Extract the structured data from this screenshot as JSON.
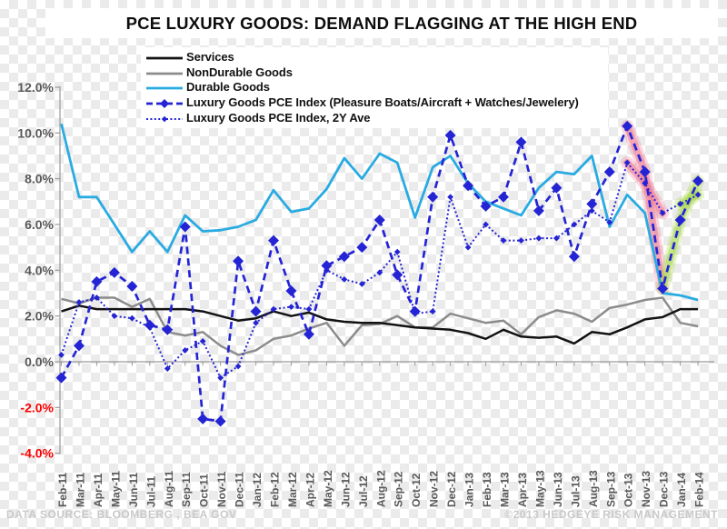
{
  "title": "PCE LUXURY GOODS: DEMAND FLAGGING AT THE HIGH END",
  "legend": {
    "items": [
      {
        "label": "Services",
        "key": "services",
        "style": "solid",
        "marker": "none"
      },
      {
        "label": "NonDurable Goods",
        "key": "nondurable",
        "style": "solid",
        "marker": "none"
      },
      {
        "label": "Durable Goods",
        "key": "durable",
        "style": "solid",
        "marker": "none"
      },
      {
        "label": "Luxury Goods PCE Index (Pleasure Boats/Aircraft + Watches/Jewelery)",
        "key": "luxury",
        "style": "dashed",
        "marker": "diamond"
      },
      {
        "label": "Luxury Goods PCE Index, 2Y Ave",
        "key": "luxury_2y",
        "style": "dotted",
        "marker": "diamond-small"
      }
    ]
  },
  "footer": {
    "left": "DATA SOURCE: BLOOMBERG , BEA GOV",
    "right": "©2013 HEDGEYE  RISK MANAGEMENT"
  },
  "colors": {
    "services": "#121212",
    "nondurable": "#8c8c8c",
    "durable": "#29abe2",
    "luxury": "#2424d4",
    "luxury_2y": "#2424d4",
    "axis_label": "#595959",
    "axis_label_negative": "#fe0000",
    "axis_line": "#9a9a9a",
    "highlight_pink": "#f2728f",
    "highlight_green": "#a6d944"
  },
  "chart_data": {
    "type": "line",
    "title": "PCE LUXURY GOODS: DEMAND FLAGGING AT THE HIGH END",
    "xlabel": "",
    "ylabel": "",
    "ylim": [
      -4,
      12
    ],
    "grid": false,
    "legend_position": "top",
    "y_ticks": [
      {
        "value": 12,
        "label": "12.0%"
      },
      {
        "value": 10,
        "label": "10.0%"
      },
      {
        "value": 8,
        "label": "8.0%"
      },
      {
        "value": 6,
        "label": "6.0%"
      },
      {
        "value": 4,
        "label": "4.0%"
      },
      {
        "value": 2,
        "label": "2.0%"
      },
      {
        "value": 0,
        "label": "0.0%"
      },
      {
        "value": -2,
        "label": "-2.0%"
      },
      {
        "value": -4,
        "label": "-4.0%"
      }
    ],
    "categories": [
      "Feb-11",
      "Mar-11",
      "Apr-11",
      "May-11",
      "Jun-11",
      "Jul-11",
      "Aug-11",
      "Sep-11",
      "Oct-11",
      "Nov-11",
      "Dec-11",
      "Jan-12",
      "Feb-12",
      "Mar-12",
      "Apr-12",
      "May-12",
      "Jun-12",
      "Jul-12",
      "Aug-12",
      "Sep-12",
      "Oct-12",
      "Nov-12",
      "Dec-12",
      "Jan-13",
      "Feb-13",
      "Mar-13",
      "Apr-13",
      "May-13",
      "Jun-13",
      "Jul-13",
      "Aug-13",
      "Sep-13",
      "Oct-13",
      "Nov-13",
      "Dec-13",
      "Jan-14",
      "Feb-14"
    ],
    "series": [
      {
        "name": "Services",
        "key": "services",
        "style": "solid",
        "marker": "none",
        "values": [
          2.2,
          2.45,
          2.3,
          2.3,
          2.3,
          2.3,
          2.3,
          2.3,
          2.2,
          2.0,
          1.8,
          1.9,
          2.2,
          2.0,
          2.15,
          1.85,
          1.75,
          1.7,
          1.7,
          1.6,
          1.5,
          1.45,
          1.4,
          1.25,
          1.0,
          1.4,
          1.1,
          1.05,
          1.1,
          0.8,
          1.3,
          1.2,
          1.5,
          1.85,
          1.95,
          2.3,
          2.3
        ]
      },
      {
        "name": "NonDurable Goods",
        "key": "nondurable",
        "style": "solid",
        "marker": "none",
        "values": [
          2.75,
          2.55,
          2.8,
          2.8,
          2.4,
          2.75,
          1.3,
          1.15,
          1.3,
          0.7,
          0.3,
          0.5,
          1.0,
          1.15,
          1.45,
          1.7,
          0.7,
          1.6,
          1.65,
          2.0,
          1.5,
          1.5,
          2.1,
          1.9,
          1.7,
          1.8,
          1.2,
          1.95,
          2.25,
          2.1,
          1.75,
          2.35,
          2.5,
          2.7,
          2.8,
          1.7,
          1.55
        ]
      },
      {
        "name": "Durable Goods",
        "key": "durable",
        "style": "solid",
        "marker": "none",
        "values": [
          10.4,
          7.2,
          7.2,
          6.0,
          4.8,
          5.7,
          4.8,
          6.4,
          5.7,
          5.75,
          5.9,
          6.2,
          7.5,
          6.55,
          6.7,
          7.55,
          8.9,
          8.0,
          9.1,
          8.7,
          6.3,
          8.5,
          9.0,
          7.8,
          7.0,
          6.7,
          6.4,
          7.6,
          8.3,
          8.2,
          9.0,
          5.9,
          7.3,
          6.5,
          3.0,
          2.9,
          2.7
        ]
      },
      {
        "name": "Luxury Goods PCE Index (Pleasure Boats/Aircraft + Watches/Jewelery)",
        "key": "luxury",
        "style": "dashed",
        "marker": "diamond",
        "values": [
          -0.7,
          0.7,
          3.5,
          3.9,
          3.3,
          1.6,
          1.4,
          5.9,
          -2.5,
          -2.6,
          4.4,
          2.2,
          5.3,
          3.1,
          1.2,
          4.2,
          4.6,
          5.0,
          6.2,
          3.8,
          2.2,
          7.2,
          9.9,
          7.7,
          6.8,
          7.2,
          9.6,
          6.6,
          7.6,
          4.6,
          6.9,
          8.3,
          10.3,
          8.3,
          3.2,
          6.2,
          7.9
        ]
      },
      {
        "name": "Luxury Goods PCE Index, 2Y Ave",
        "key": "luxury_2y",
        "style": "dotted",
        "marker": "diamond-small",
        "values": [
          0.3,
          2.6,
          2.8,
          2.0,
          1.9,
          1.5,
          -0.3,
          0.5,
          0.9,
          -0.7,
          -0.2,
          1.7,
          2.3,
          2.4,
          2.3,
          4.0,
          3.6,
          3.4,
          3.9,
          4.8,
          2.1,
          2.2,
          7.2,
          5.0,
          6.0,
          5.3,
          5.3,
          5.4,
          5.4,
          6.0,
          6.6,
          6.1,
          8.7,
          7.8,
          6.5,
          6.9,
          7.3
        ]
      }
    ],
    "highlights": [
      {
        "color_key": "highlight_pink",
        "segments": [
          {
            "series": "luxury",
            "from": "Oct-13",
            "to": "Dec-13"
          },
          {
            "series": "luxury_2y",
            "from": "Oct-13",
            "to": "Dec-13"
          }
        ]
      },
      {
        "color_key": "highlight_green",
        "segments": [
          {
            "series": "luxury",
            "from": "Dec-13",
            "to": "Feb-14"
          },
          {
            "series": "luxury_2y",
            "from": "Jan-14",
            "to": "Feb-14"
          }
        ]
      }
    ]
  }
}
